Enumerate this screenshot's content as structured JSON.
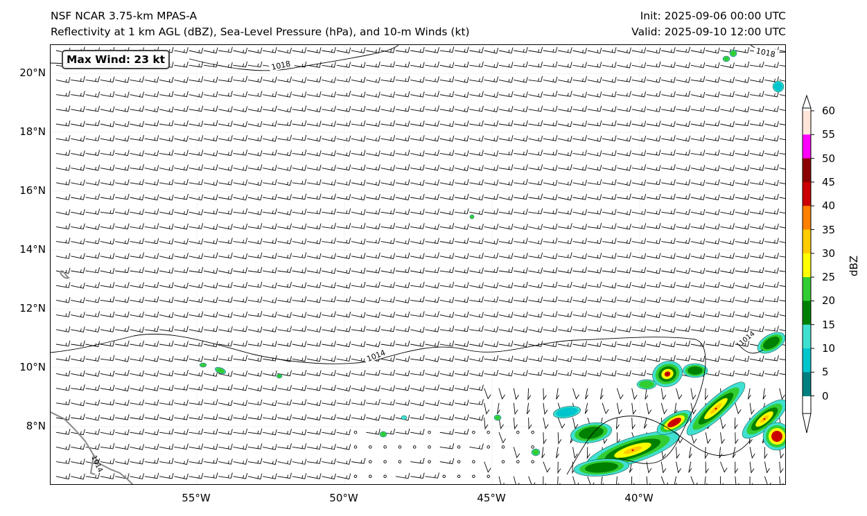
{
  "header": {
    "title_left": "NSF NCAR 3.75-km MPAS-A",
    "subtitle_left": "Reflectivity at 1 km AGL (dBZ), Sea-Level Pressure (hPa), and 10-m Winds (kt)",
    "init": "Init: 2025-09-06 00:00 UTC",
    "valid": "Valid: 2025-09-10 12:00 UTC"
  },
  "badge": {
    "text": "Max Wind: 23 kt"
  },
  "axes": {
    "lat_ticks": [
      "20°N",
      "18°N",
      "16°N",
      "14°N",
      "12°N",
      "10°N",
      "8°N"
    ],
    "lon_ticks": [
      "55°W",
      "50°W",
      "45°W",
      "40°W"
    ]
  },
  "colorbar": {
    "label": "dBZ",
    "ticks": [
      "60",
      "55",
      "50",
      "45",
      "40",
      "35",
      "30",
      "25",
      "20",
      "15",
      "10",
      "5",
      "0"
    ],
    "colors": [
      "#ffe4d8",
      "#ff00ff",
      "#8b0000",
      "#cc0000",
      "#ff7f00",
      "#ffcc00",
      "#ffff00",
      "#32cd32",
      "#008000",
      "#40e0d0",
      "#00c5cd",
      "#008080"
    ]
  },
  "isobars": [
    {
      "label": "1018"
    },
    {
      "label": "1018"
    },
    {
      "label": "1014"
    },
    {
      "label": "1014"
    },
    {
      "label": "1014"
    }
  ],
  "map_extent": {
    "lon_min": -59.3,
    "lon_max": -34.4,
    "lat_min": 6.0,
    "lat_max": 21.0
  }
}
